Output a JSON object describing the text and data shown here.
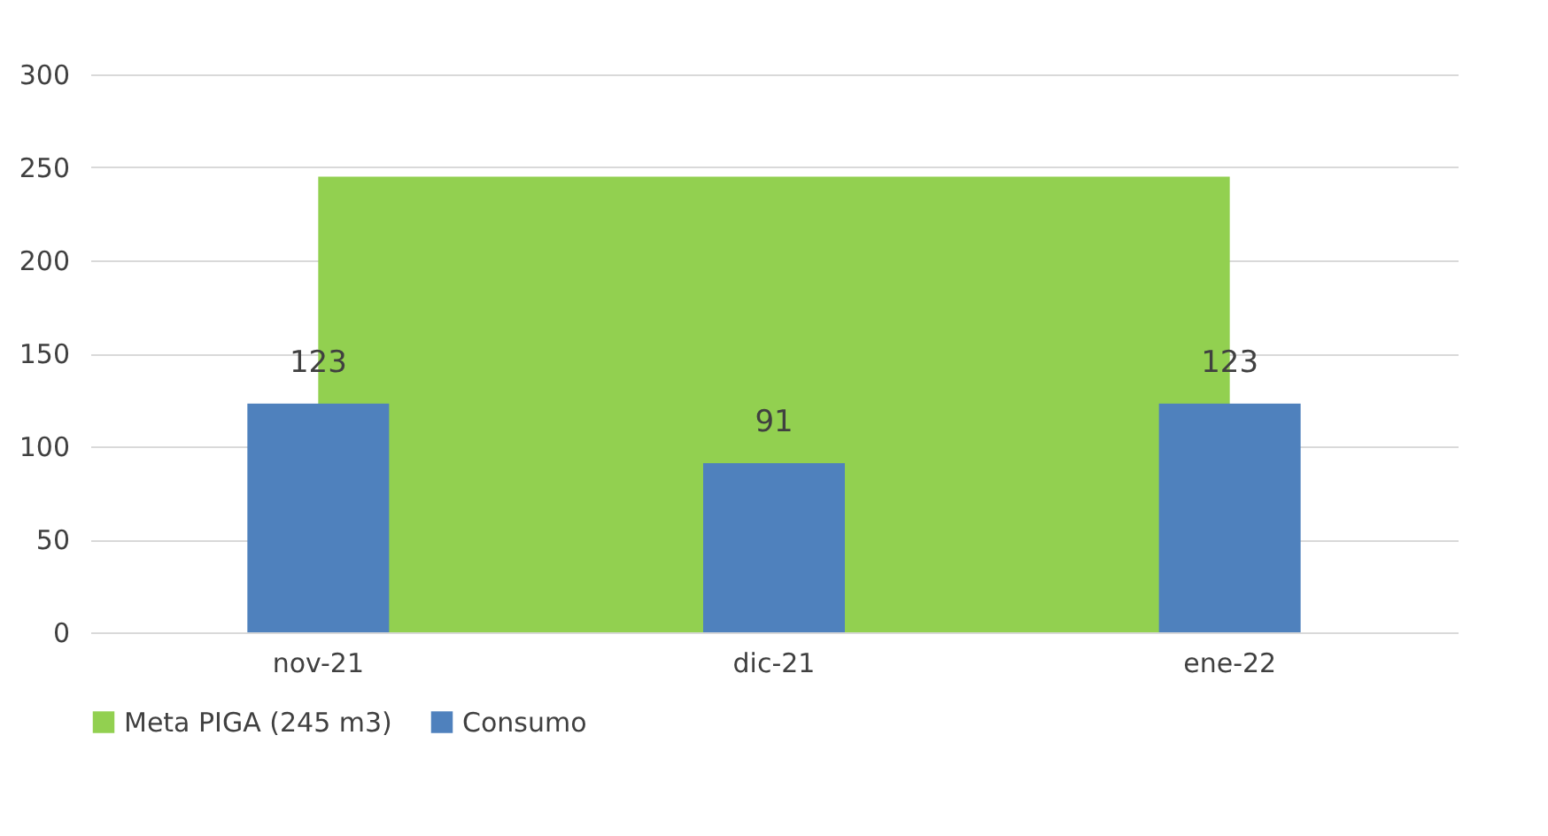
{
  "chart_data": {
    "type": "bar",
    "categories": [
      "nov-21",
      "dic-21",
      "ene-22"
    ],
    "series": [
      {
        "name": "Meta PIGA (245 m3)",
        "type": "area",
        "color": "#92d050",
        "values": [
          245,
          245,
          245
        ]
      },
      {
        "name": "Consumo",
        "color": "#4f81bd",
        "values": [
          123,
          91,
          123
        ],
        "value_labels": [
          "123",
          "91",
          "123"
        ]
      }
    ],
    "ylim": [
      0,
      300
    ],
    "yticks": [
      0,
      50,
      100,
      150,
      200,
      250,
      300
    ],
    "grid": "y",
    "legend": "bottom"
  }
}
